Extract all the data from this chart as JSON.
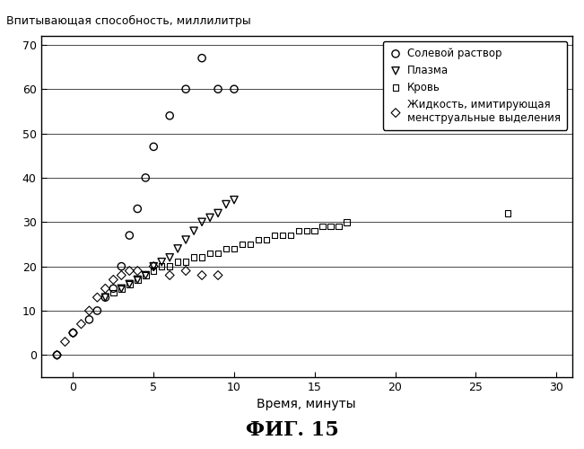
{
  "title_ylabel": "Впитывающая способность, миллилитры",
  "xlabel": "Время, минуты",
  "fig_label": "ФИГ. 15",
  "xlim": [
    -2,
    31
  ],
  "ylim": [
    -5,
    72
  ],
  "xticks": [
    0,
    5,
    10,
    15,
    20,
    25,
    30
  ],
  "yticks": [
    0,
    10,
    20,
    30,
    40,
    50,
    60,
    70
  ],
  "saline_x": [
    -1,
    0,
    1,
    1.5,
    2,
    2.5,
    3,
    3.5,
    4,
    4.5,
    5,
    6,
    7,
    8,
    9,
    10
  ],
  "saline_y": [
    0,
    5,
    8,
    10,
    13,
    15,
    20,
    27,
    33,
    40,
    47,
    54,
    60,
    67,
    60,
    60
  ],
  "plasma_x": [
    2,
    3,
    3.5,
    4,
    4.5,
    5,
    5.5,
    6,
    6.5,
    7,
    7.5,
    8,
    8.5,
    9,
    9.5,
    10
  ],
  "plasma_y": [
    13,
    15,
    16,
    17,
    18,
    20,
    21,
    22,
    24,
    26,
    28,
    30,
    31,
    32,
    34,
    35
  ],
  "blood_x": [
    2.5,
    3,
    3.5,
    4,
    4.5,
    5,
    5.5,
    6,
    6.5,
    7,
    7.5,
    8,
    8.5,
    9,
    9.5,
    10,
    10.5,
    11,
    11.5,
    12,
    12.5,
    13,
    13.5,
    14,
    14.5,
    15,
    15.5,
    16,
    16.5,
    17,
    27
  ],
  "blood_y": [
    14,
    15,
    16,
    17,
    18,
    19,
    20,
    20,
    21,
    21,
    22,
    22,
    23,
    23,
    24,
    24,
    25,
    25,
    26,
    26,
    27,
    27,
    27,
    28,
    28,
    28,
    29,
    29,
    29,
    30,
    32
  ],
  "menses_x": [
    -1,
    -0.5,
    0,
    0.5,
    1,
    1.5,
    2,
    2.5,
    3,
    3.5,
    4,
    5,
    6,
    7,
    8,
    9
  ],
  "menses_y": [
    0,
    3,
    5,
    7,
    10,
    13,
    15,
    17,
    18,
    19,
    19,
    20,
    18,
    19,
    18,
    18
  ],
  "legend_labels": [
    "Солевой раствор",
    "Плазма",
    "Кровь",
    "Жидкость, имитирующая\nменструальные выделения"
  ],
  "background_color": "#ffffff",
  "text_color": "#000000"
}
